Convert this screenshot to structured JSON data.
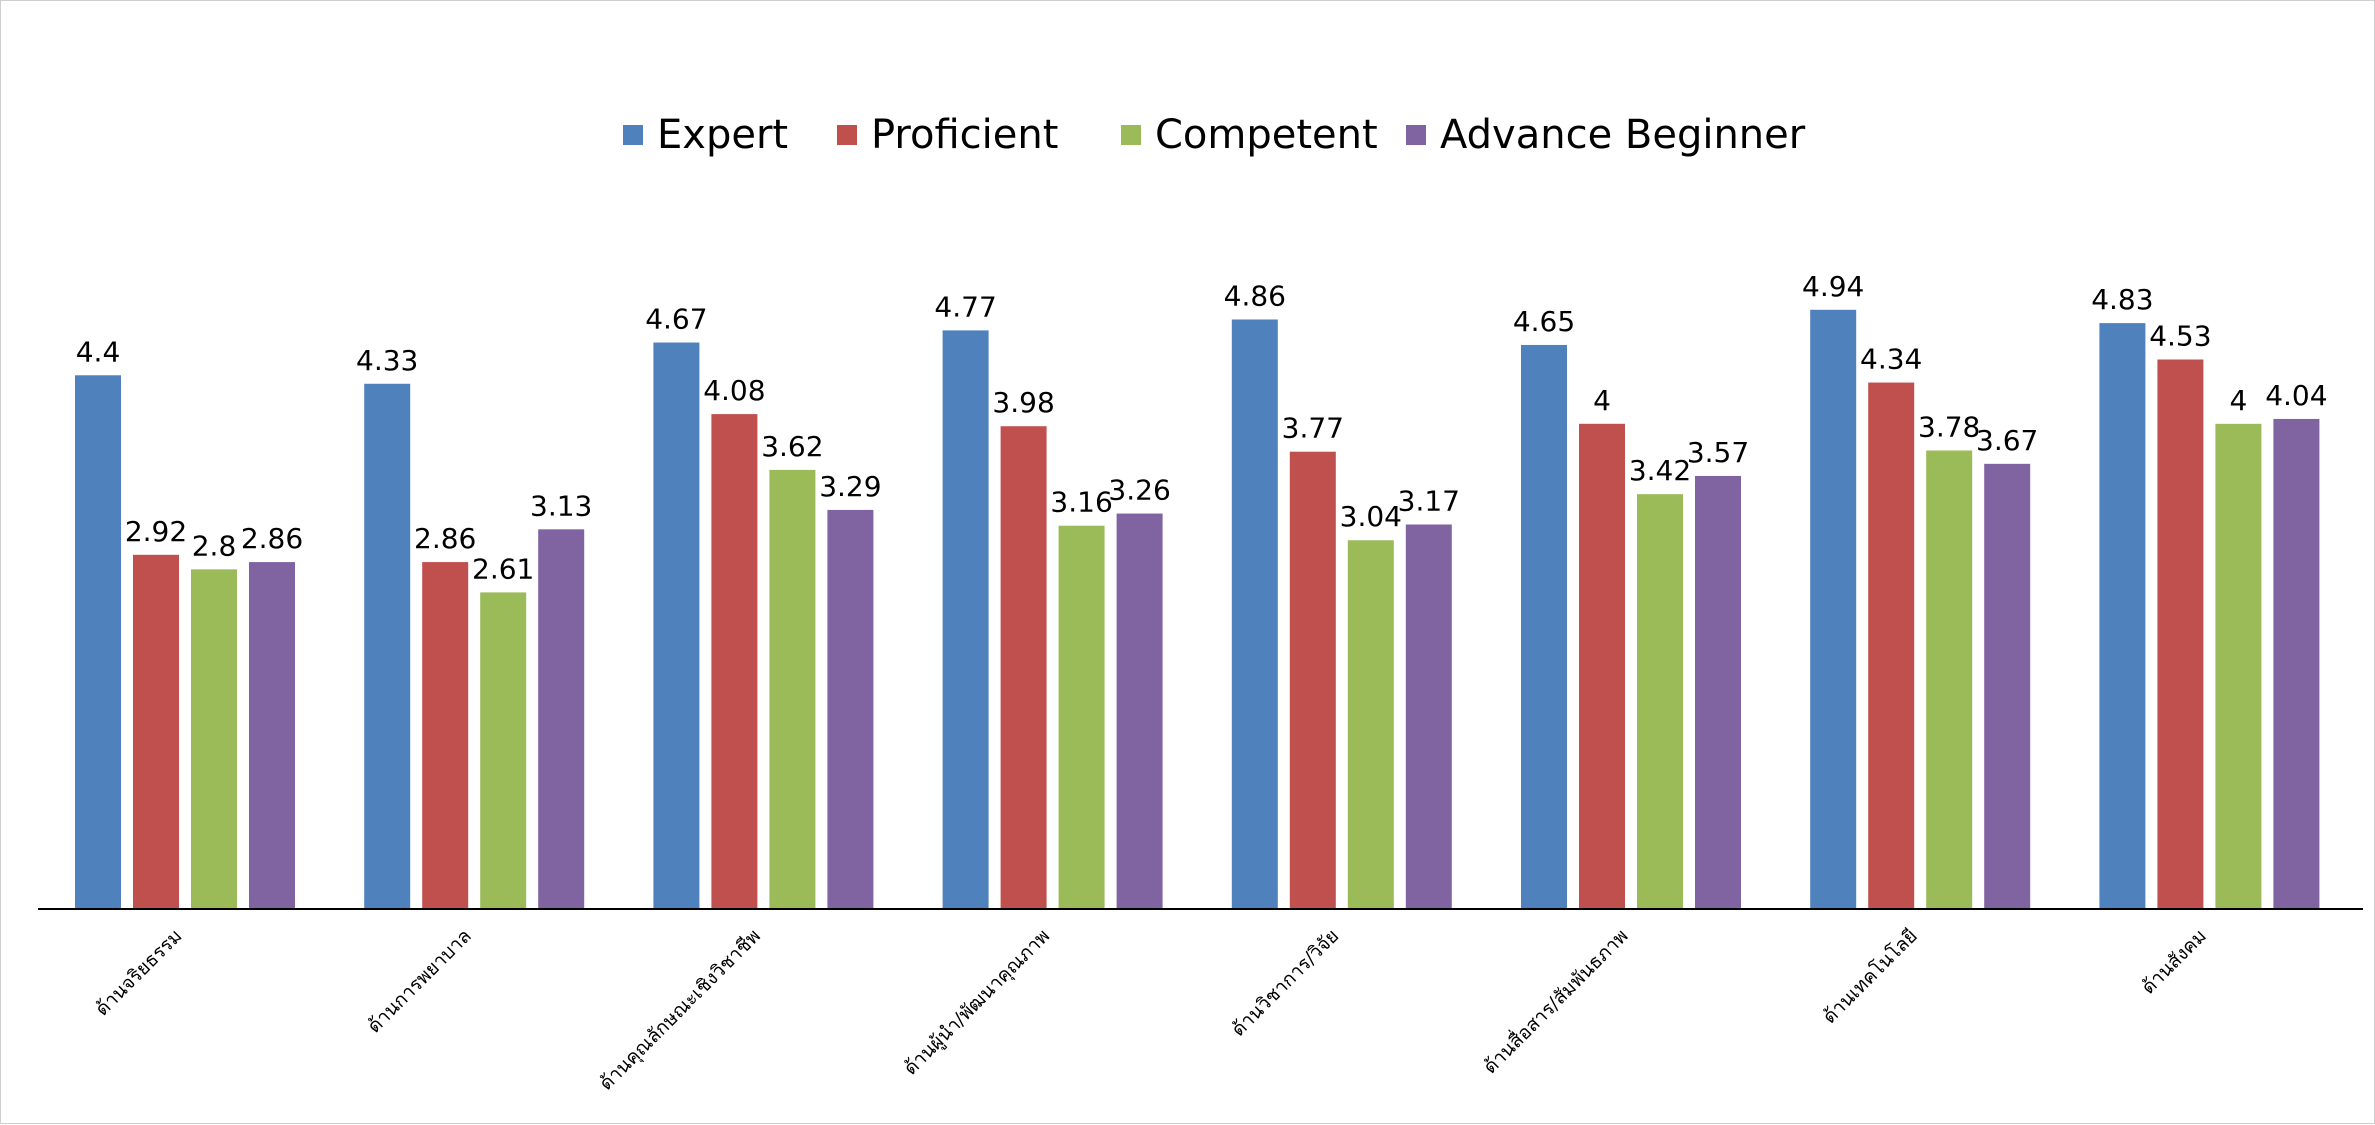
{
  "chart_data": {
    "type": "bar",
    "title": "",
    "xlabel": "",
    "ylabel": "",
    "ylim": [
      0,
      5.5
    ],
    "grid": false,
    "legend_position": "top",
    "data_labels": true,
    "categories": [
      "ด้านจริยธรรม",
      "ด้านการพยาบาล",
      "ด้านคุณลักษณะเชิงวิชาชีพ",
      "ด้านผู้นำ/พัฒนาคุณภาพ",
      "ด้านวิชาการ/วิจัย",
      "ด้านสื่อสาร/สัมพันธภาพ",
      "ด้านเทคโนโลยี",
      "ด้านสังคม"
    ],
    "series": [
      {
        "name": "Expert",
        "color": "#4F81BD",
        "values": [
          4.4,
          4.33,
          4.67,
          4.77,
          4.86,
          4.65,
          4.94,
          4.83
        ]
      },
      {
        "name": "Proficient",
        "color": "#C0504D",
        "values": [
          2.92,
          2.86,
          4.08,
          3.98,
          3.77,
          4,
          4.34,
          4.53
        ]
      },
      {
        "name": "Competent",
        "color": "#9BBB59",
        "values": [
          2.8,
          2.61,
          3.62,
          3.16,
          3.04,
          3.42,
          3.78,
          4
        ]
      },
      {
        "name": "Advance Beginner",
        "color": "#8064A2",
        "values": [
          2.86,
          3.13,
          3.29,
          3.26,
          3.17,
          3.57,
          3.67,
          4.04
        ]
      }
    ]
  }
}
